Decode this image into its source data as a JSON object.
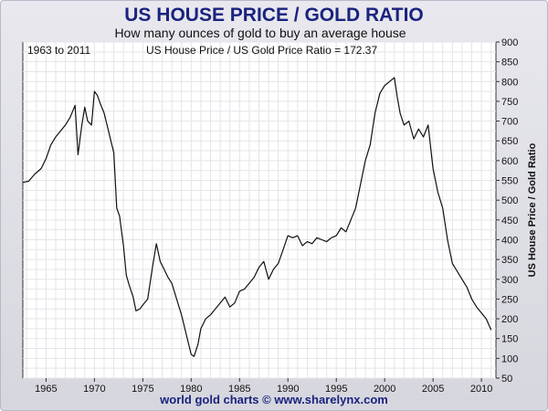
{
  "chart_data": {
    "type": "line",
    "title": "US HOUSE PRICE / GOLD RATIO",
    "subtitle": "How many ounces of gold to buy an average house",
    "date_range_label": "1963 to 2011",
    "current_value_label": "US House Price / US Gold Price Ratio = 172.37",
    "ylabel": "US House Price / Gold Ratio",
    "footer": "world gold charts © www.sharelynx.com",
    "xlim": [
      1962.6,
      2011.5
    ],
    "ylim": [
      50,
      900
    ],
    "x_ticks": [
      "1965",
      "1970",
      "1975",
      "1980",
      "1985",
      "1990",
      "1995",
      "2000",
      "2005",
      "2010"
    ],
    "y_ticks": [
      "900",
      "850",
      "800",
      "750",
      "700",
      "650",
      "600",
      "550",
      "500",
      "450",
      "400",
      "350",
      "300",
      "250",
      "200",
      "150",
      "100",
      "50"
    ],
    "line_color": "#111111",
    "series": [
      {
        "name": "US House Price / Gold Ratio",
        "x": [
          1962.6,
          1963.2,
          1963.8,
          1964.5,
          1965.0,
          1965.5,
          1966.0,
          1966.5,
          1967.0,
          1967.5,
          1968.0,
          1968.3,
          1968.7,
          1969.0,
          1969.3,
          1969.7,
          1970.0,
          1970.3,
          1970.6,
          1971.0,
          1971.3,
          1971.7,
          1972.0,
          1972.3,
          1972.6,
          1973.0,
          1973.3,
          1973.6,
          1974.0,
          1974.3,
          1974.7,
          1975.0,
          1975.5,
          1976.0,
          1976.4,
          1976.8,
          1977.2,
          1977.6,
          1978.0,
          1978.5,
          1979.0,
          1979.5,
          1979.8,
          1980.0,
          1980.3,
          1980.7,
          1981.0,
          1981.5,
          1982.0,
          1982.5,
          1983.0,
          1983.5,
          1984.0,
          1984.5,
          1985.0,
          1985.5,
          1986.0,
          1986.5,
          1987.0,
          1987.5,
          1988.0,
          1988.5,
          1989.0,
          1989.5,
          1990.0,
          1990.5,
          1991.0,
          1991.5,
          1992.0,
          1992.5,
          1993.0,
          1993.5,
          1994.0,
          1994.5,
          1995.0,
          1995.5,
          1996.0,
          1996.5,
          1997.0,
          1997.5,
          1998.0,
          1998.5,
          1999.0,
          1999.5,
          2000.0,
          2000.5,
          2001.0,
          2001.3,
          2001.6,
          2002.0,
          2002.5,
          2003.0,
          2003.5,
          2004.0,
          2004.5,
          2005.0,
          2005.5,
          2006.0,
          2006.5,
          2007.0,
          2007.5,
          2008.0,
          2008.5,
          2009.0,
          2009.5,
          2010.0,
          2010.5,
          2011.0
        ],
        "values": [
          545,
          548,
          565,
          580,
          605,
          640,
          660,
          675,
          690,
          710,
          740,
          615,
          690,
          735,
          700,
          690,
          775,
          765,
          745,
          720,
          690,
          650,
          620,
          480,
          460,
          385,
          310,
          285,
          255,
          220,
          225,
          235,
          250,
          330,
          390,
          345,
          325,
          305,
          290,
          250,
          210,
          160,
          130,
          110,
          105,
          135,
          175,
          200,
          210,
          225,
          240,
          255,
          230,
          240,
          270,
          275,
          290,
          305,
          330,
          345,
          300,
          325,
          340,
          375,
          410,
          405,
          410,
          385,
          395,
          390,
          405,
          400,
          395,
          405,
          410,
          430,
          420,
          450,
          480,
          540,
          600,
          640,
          720,
          770,
          790,
          800,
          810,
          760,
          720,
          690,
          700,
          655,
          680,
          660,
          690,
          580,
          520,
          480,
          400,
          340,
          320,
          300,
          280,
          250,
          230,
          215,
          200,
          172
        ]
      }
    ]
  }
}
